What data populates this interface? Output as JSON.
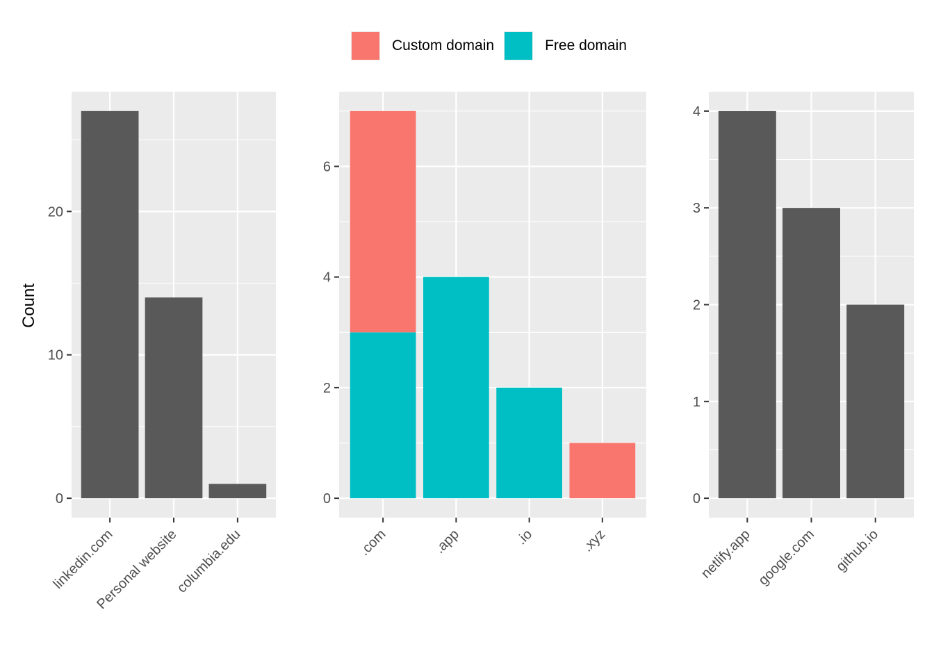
{
  "legend": {
    "items": [
      {
        "label": "Custom domain",
        "color": "#F8766D"
      },
      {
        "label": "Free domain",
        "color": "#00BFC4"
      }
    ]
  },
  "ylabel": "Count",
  "theme": {
    "panel_bg": "#EBEBEB",
    "grid": "#FFFFFF",
    "bar_dark": "#595959",
    "tick_text": "#4D4D4D"
  },
  "chart_data": [
    {
      "type": "bar",
      "categories": [
        "linkedin.com",
        "Personal website",
        "columbia.edu"
      ],
      "values": [
        27,
        14,
        1
      ],
      "ylabel": "Count",
      "ylim": [
        -1.35,
        28.35
      ],
      "yticks": [
        0,
        10,
        20
      ],
      "grid": true
    },
    {
      "type": "bar",
      "stacked": true,
      "categories": [
        ".com",
        ".app",
        ".io",
        ".xyz"
      ],
      "series": [
        {
          "name": "Free domain",
          "color": "#00BFC4",
          "values": [
            3,
            4,
            2,
            0
          ]
        },
        {
          "name": "Custom domain",
          "color": "#F8766D",
          "values": [
            4,
            0,
            0,
            1
          ]
        }
      ],
      "ylim": [
        -0.35,
        7.35
      ],
      "yticks": [
        0,
        2,
        4,
        6
      ],
      "grid": true,
      "legend": "top"
    },
    {
      "type": "bar",
      "categories": [
        "netlify.app",
        "google.com",
        "github.io"
      ],
      "values": [
        4,
        3,
        2
      ],
      "ylim": [
        -0.2,
        4.2
      ],
      "yticks": [
        0,
        1,
        2,
        3,
        4
      ],
      "grid": true
    }
  ]
}
